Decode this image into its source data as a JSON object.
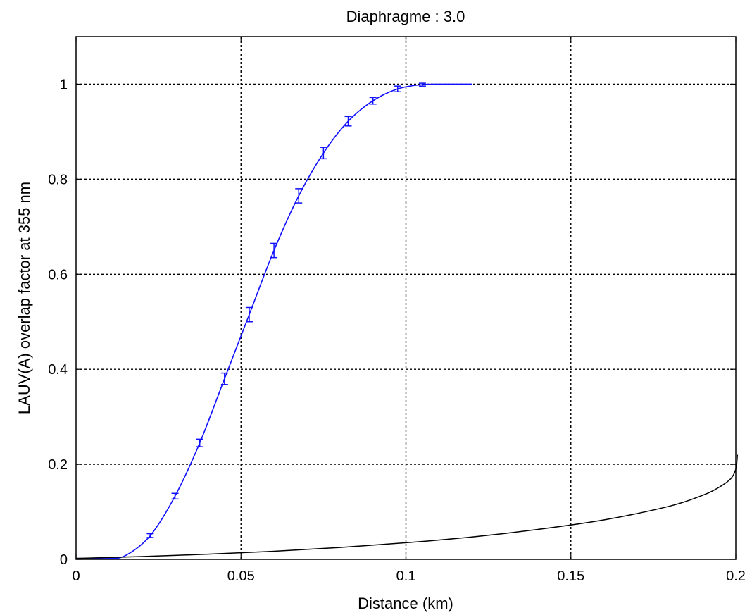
{
  "chart_data": {
    "type": "line",
    "title": "Diaphragme : 3.0",
    "xlabel": "Distance (km)",
    "ylabel": "LAUV(A) overlap factor at 355 nm",
    "xlim": [
      0,
      0.2
    ],
    "ylim": [
      0,
      1.1
    ],
    "grid": true,
    "x_ticks": [
      0,
      0.05,
      0.1,
      0.15,
      0.2
    ],
    "x_tick_labels": [
      "0",
      "0.05",
      "0.1",
      "0.15",
      "0.2"
    ],
    "y_ticks": [
      0,
      0.2,
      0.4,
      0.6,
      0.8,
      1
    ],
    "y_tick_labels": [
      "0",
      "0.2",
      "0.4",
      "0.6",
      "0.8",
      "1"
    ],
    "series": [
      {
        "color": "#1010ff",
        "style": "line-with-errorbars",
        "x": [
          0,
          0.005,
          0.01,
          0.015,
          0.0225,
          0.03,
          0.0375,
          0.045,
          0.0525,
          0.06,
          0.0675,
          0.075,
          0.0825,
          0.09,
          0.0975,
          0.105,
          0.1125,
          0.12
        ],
        "y": [
          0.002,
          0.002,
          0.002,
          0.008,
          0.05,
          0.133,
          0.245,
          0.38,
          0.515,
          0.65,
          0.765,
          0.855,
          0.922,
          0.965,
          0.99,
          0.999,
          1.0,
          1.0
        ],
        "error": [
          0,
          0,
          0,
          0,
          0.004,
          0.006,
          0.008,
          0.012,
          0.015,
          0.015,
          0.015,
          0.012,
          0.01,
          0.007,
          0.006,
          0.003,
          0.001,
          0.001
        ],
        "errorbar_x": [
          0.0225,
          0.03,
          0.0375,
          0.045,
          0.0525,
          0.06,
          0.0675,
          0.075,
          0.0825,
          0.09,
          0.0975,
          0.105
        ]
      },
      {
        "color": "#000000",
        "style": "line",
        "x": [
          0,
          0.02,
          0.04,
          0.06,
          0.08,
          0.1,
          0.12,
          0.14,
          0.16,
          0.18,
          0.19,
          0.195,
          0.1985,
          0.2,
          0.2005
        ],
        "y": [
          0.002,
          0.006,
          0.011,
          0.017,
          0.025,
          0.035,
          0.047,
          0.063,
          0.083,
          0.112,
          0.135,
          0.152,
          0.17,
          0.19,
          0.22
        ]
      }
    ]
  }
}
